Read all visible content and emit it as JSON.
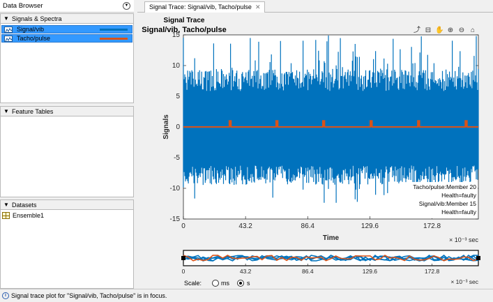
{
  "data_browser": {
    "title": "Data Browser",
    "sections": {
      "signals": {
        "label": "Signals & Spectra",
        "items": [
          {
            "name": "Signal/vib",
            "color": "#0072bd"
          },
          {
            "name": "Tacho/pulse",
            "color": "#d95319"
          }
        ]
      },
      "features": {
        "label": "Feature Tables"
      },
      "datasets": {
        "label": "Datasets",
        "items": [
          {
            "name": "Ensemble1"
          }
        ]
      }
    }
  },
  "tab": {
    "label": "Signal Trace: Signal/vib, Tacho/pulse",
    "close": "✕"
  },
  "plot": {
    "title": "Signal Trace",
    "subtitle": "Signal/vib, Tacho/pulse",
    "ylabel": "Signals",
    "xlabel": "Time",
    "x_exponent": "× 10⁻³ sec",
    "legend": [
      "Tacho/pulse:Member 20",
      "Health=faulty",
      "Signal/vib:Member 15",
      "Health=faulty"
    ],
    "y_ticks": [
      "15",
      "10",
      "5",
      "0",
      "-5",
      "-10",
      "-15"
    ],
    "x_ticks": [
      "0",
      "43.2",
      "86.4",
      "129.6",
      "172.8"
    ],
    "panner_x_ticks": [
      "0",
      "43.2",
      "86.4",
      "129.6",
      "172.8"
    ],
    "panner_exponent": "× 10⁻³ sec"
  },
  "chart_data": {
    "type": "line",
    "title": "Signal Trace",
    "subtitle": "Signal/vib, Tacho/pulse",
    "xlabel": "Time",
    "ylabel": "Signals",
    "x_unit": "× 10⁻³ sec",
    "xlim": [
      0,
      205
    ],
    "ylim": [
      -15,
      15
    ],
    "series": [
      {
        "name": "Signal/vib",
        "color": "#0072bd",
        "description_values": {
          "typical_range": [
            -9,
            9
          ],
          "peak_range": [
            -13,
            15
          ]
        }
      },
      {
        "name": "Tacho/pulse",
        "color": "#d95319",
        "baseline": 0,
        "pulse_height": 1,
        "pulse_times": [
          32.5,
          65,
          97.5,
          130.5,
          163.5,
          196.5
        ]
      }
    ],
    "legend_location": "bottom-right"
  },
  "scale": {
    "label": "Scale:",
    "options": [
      {
        "label": "ms",
        "selected": false
      },
      {
        "label": "s",
        "selected": true
      }
    ]
  },
  "status": {
    "text": "Signal trace plot for \"Signal/vib, Tacho/pulse\" is in focus."
  },
  "toolbar_icons": [
    "export-icon",
    "datatip-icon",
    "pan-icon",
    "zoom-in-icon",
    "zoom-out-icon",
    "home-icon"
  ]
}
